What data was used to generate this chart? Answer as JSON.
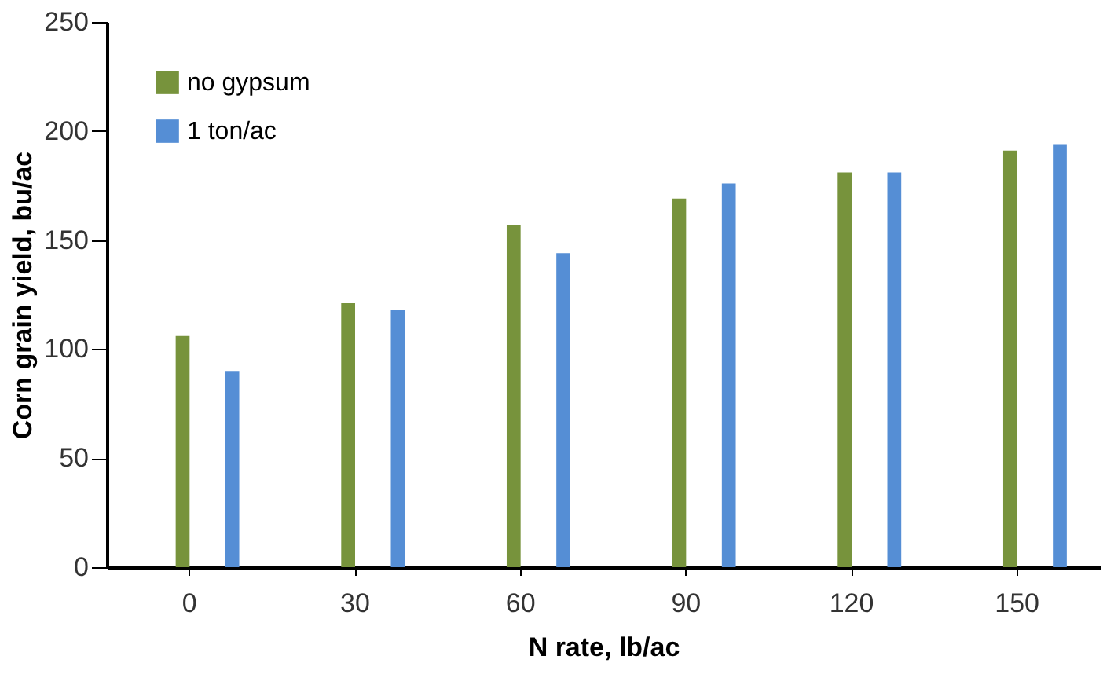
{
  "chart_data": {
    "type": "bar",
    "xlabel": "N rate, lb/ac",
    "ylabel": "Corn grain yield, bu/ac",
    "categories": [
      "0",
      "30",
      "60",
      "90",
      "120",
      "150"
    ],
    "series": [
      {
        "name": "no gypsum",
        "color": "#77933c",
        "values": [
          106,
          121,
          157,
          169,
          181,
          191
        ]
      },
      {
        "name": "1 ton/ac",
        "color": "#558ed5",
        "values": [
          90,
          118,
          144,
          176,
          181,
          194
        ]
      }
    ],
    "ylim": [
      0,
      250
    ],
    "yticks": [
      0,
      50,
      100,
      150,
      200,
      250
    ],
    "grid": false,
    "legend": "top left"
  }
}
